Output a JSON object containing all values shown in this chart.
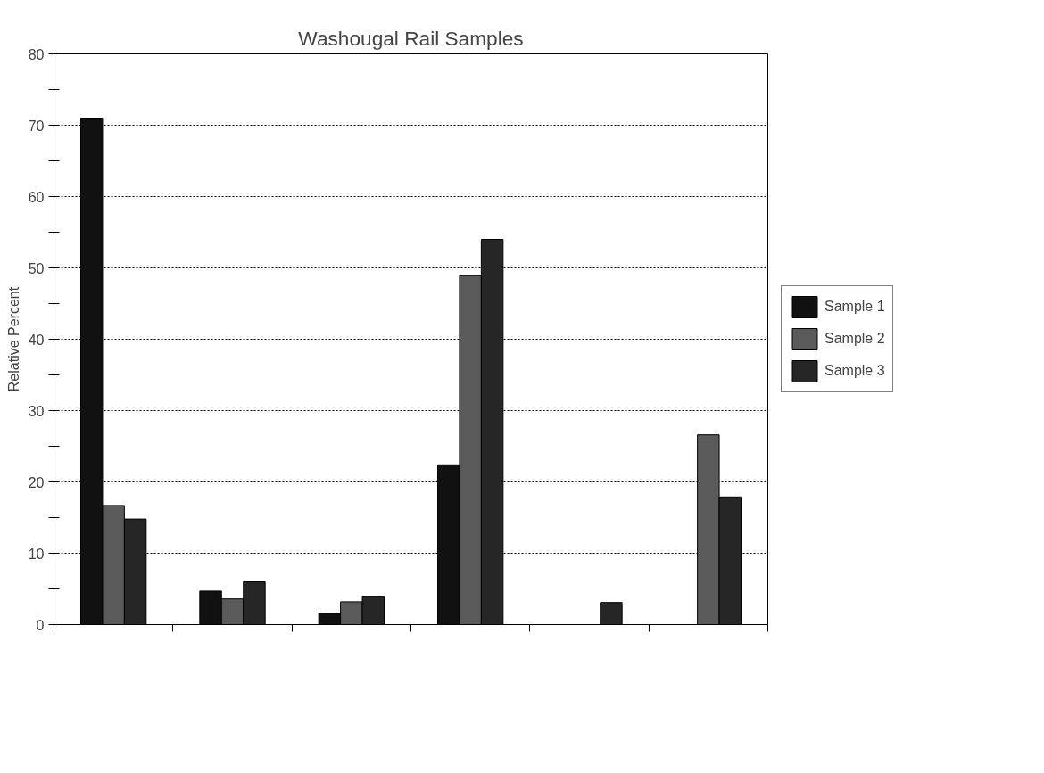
{
  "chart_data": {
    "type": "bar",
    "title": "Washougal Rail Samples",
    "ylabel": "Relative Percent",
    "categories": [
      null,
      null,
      null,
      null,
      null,
      null
    ],
    "series": [
      {
        "name": "Sample 1",
        "color": "#111111",
        "values": [
          71,
          4.7,
          1.6,
          22.4,
          null,
          null
        ]
      },
      {
        "name": "Sample 2",
        "color": "#5a5a5a",
        "values": [
          16.7,
          3.6,
          3.2,
          48.9,
          null,
          26.6
        ]
      },
      {
        "name": "Sample 3",
        "color": "#262626",
        "values": [
          14.8,
          6.0,
          3.9,
          54,
          3.1,
          17.9
        ]
      }
    ],
    "ylim": [
      0,
      80
    ],
    "yticks": [
      0,
      {
        "value": 5,
        "label": null
      },
      10,
      {
        "value": 15,
        "label": null
      },
      20,
      {
        "value": 25,
        "label": null
      },
      30,
      {
        "value": 35,
        "label": null
      },
      40,
      {
        "value": 45,
        "label": null
      },
      50,
      {
        "value": 55,
        "label": null
      },
      60,
      {
        "value": 65,
        "label": null
      },
      70,
      {
        "value": 75,
        "label": null
      },
      80
    ],
    "grid": "y",
    "legend": "right"
  }
}
